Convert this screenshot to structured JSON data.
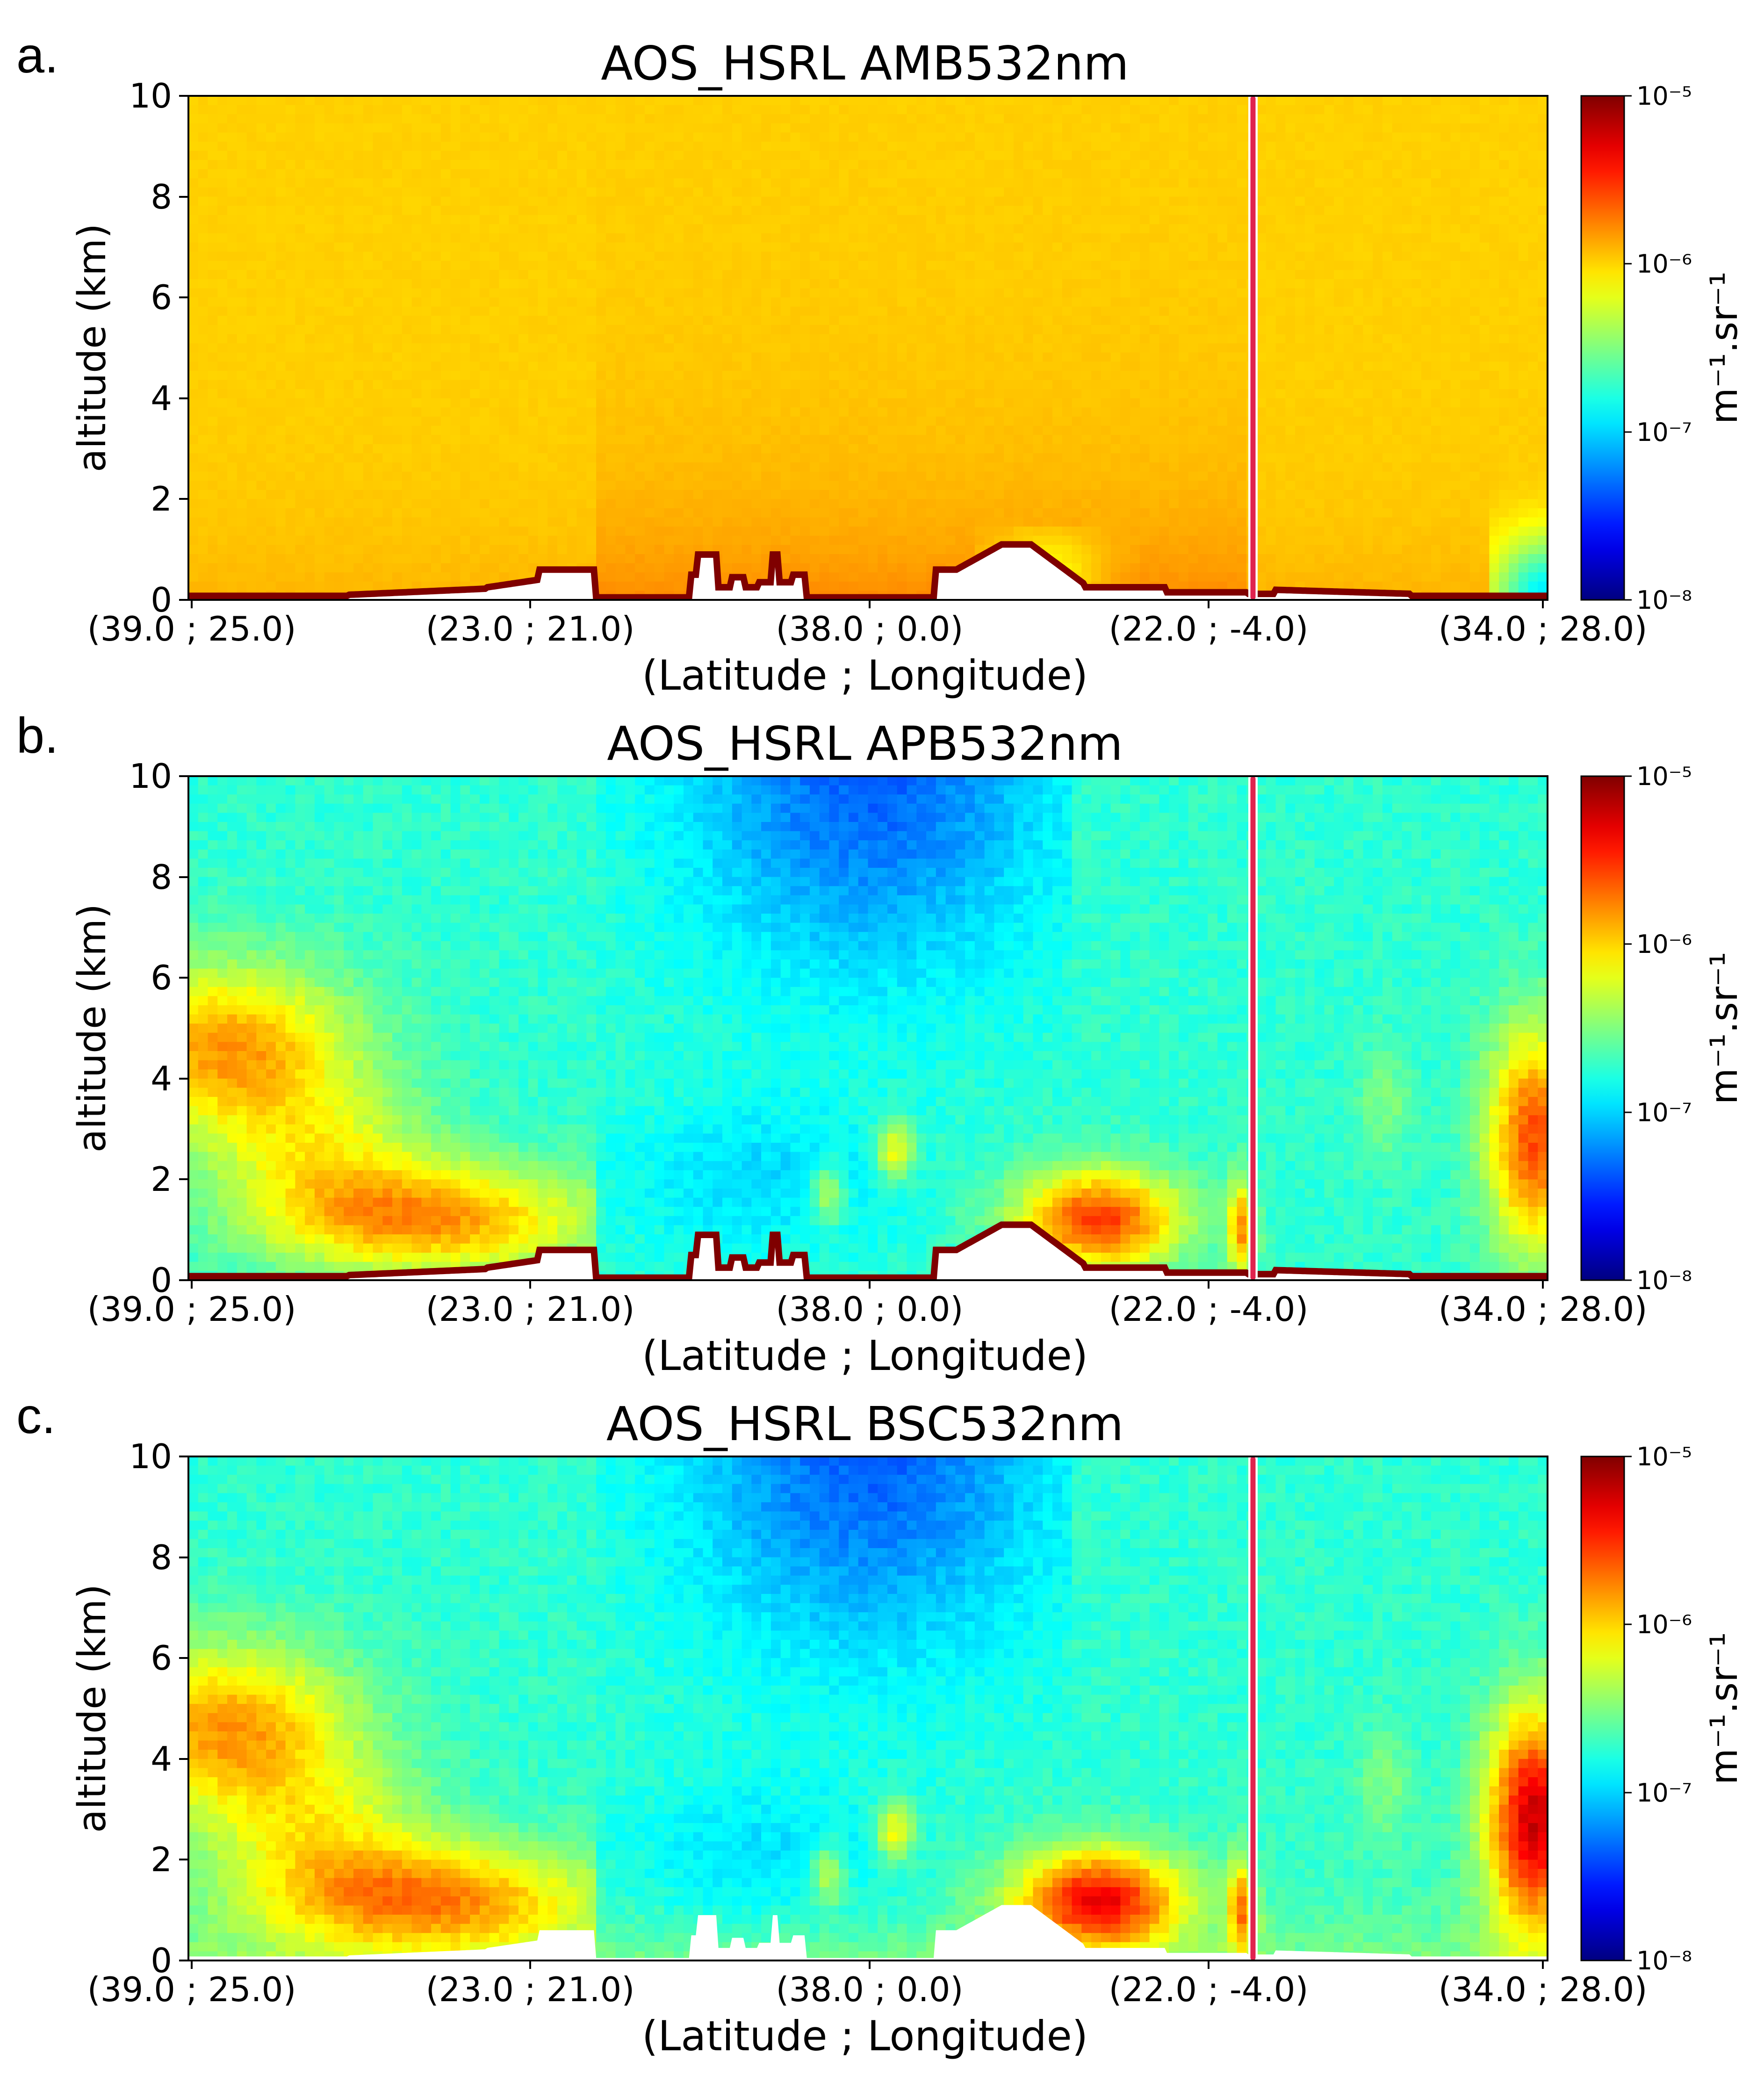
{
  "chart_data": [
    {
      "type": "heatmap",
      "panel_label": "a.",
      "title": "AOS_HSRL AMB532nm",
      "variable": "AMB532nm",
      "xlabel": "(Latitude ; Longitude)",
      "ylabel": "altitude (km)",
      "ylim": [
        0,
        10
      ],
      "yticks": [
        "0",
        "2",
        "4",
        "6",
        "8",
        "10"
      ],
      "xticks": [
        "(39.0 ; 25.0)",
        "(23.0 ; 21.0)",
        "(38.0 ; 0.0)",
        "(22.0 ; -4.0)",
        "(34.0 ; 28.0)"
      ],
      "colorbar": {
        "label": "m⁻¹.sr⁻¹",
        "scale": "log",
        "range": [
          1e-08,
          1e-05
        ],
        "ticks": [
          "10⁻⁵",
          "10⁻⁶",
          "10⁻⁷",
          "10⁻⁸"
        ],
        "colormap": "jet"
      },
      "description_level": "nearly uniform ~1e-6 throughout; slightly higher near surface; low values at far right below 1 km",
      "surface_line_color": "#7f0000",
      "segment_separator_color": "#e0234e"
    },
    {
      "type": "heatmap",
      "panel_label": "b.",
      "title": "AOS_HSRL APB532nm",
      "variable": "APB532nm",
      "xlabel": "(Latitude ; Longitude)",
      "ylabel": "altitude (km)",
      "ylim": [
        0,
        10
      ],
      "yticks": [
        "0",
        "2",
        "4",
        "6",
        "8",
        "10"
      ],
      "xticks": [
        "(39.0 ; 25.0)",
        "(23.0 ; 21.0)",
        "(38.0 ; 0.0)",
        "(22.0 ; -4.0)",
        "(34.0 ; 28.0)"
      ],
      "colorbar": {
        "label": "m⁻¹.sr⁻¹",
        "scale": "log",
        "range": [
          1e-08,
          1e-05
        ],
        "ticks": [
          "10⁻⁵",
          "10⁻⁶",
          "10⁻⁷",
          "10⁻⁸"
        ],
        "colormap": "jet"
      },
      "surface_line_color": "#7f0000",
      "segment_separator_color": "#e0234e"
    },
    {
      "type": "heatmap",
      "panel_label": "c.",
      "title": "AOS_HSRL BSC532nm",
      "variable": "BSC532nm",
      "xlabel": "(Latitude ; Longitude)",
      "ylabel": "altitude (km)",
      "ylim": [
        0,
        10
      ],
      "yticks": [
        "0",
        "2",
        "4",
        "6",
        "8",
        "10"
      ],
      "xticks": [
        "(39.0 ; 25.0)",
        "(23.0 ; 21.0)",
        "(38.0 ; 0.0)",
        "(22.0 ; -4.0)",
        "(34.0 ; 28.0)"
      ],
      "colorbar": {
        "label": "m⁻¹.sr⁻¹",
        "scale": "log",
        "range": [
          1e-08,
          1e-05
        ],
        "ticks": [
          "10⁻⁵",
          "10⁻⁶",
          "10⁻⁷",
          "10⁻⁸"
        ],
        "colormap": "jet"
      },
      "segment_separator_color": "#e0234e"
    }
  ]
}
